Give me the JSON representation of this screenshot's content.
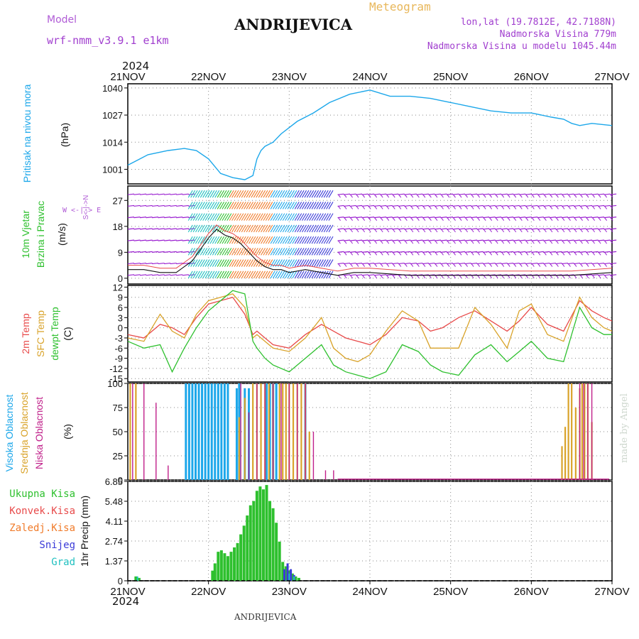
{
  "header": {
    "model_label": "Model",
    "model_version": "wrf-nmm_v3.9.1 e1km",
    "station": "ANDRIJEVICA",
    "meteogram": "Meteogram",
    "lonlat": "lon,lat (19.7812E, 42.7188N)",
    "altitude": "Nadmorska Visina 779m",
    "model_altitude": "Nadmorska Visina u modelu 1045.44m",
    "year": "2024",
    "footer": "ANDRIJEVICA",
    "made_by": "made by Angel"
  },
  "x_labels": [
    "21NOV",
    "22NOV",
    "23NOV",
    "24NOV",
    "25NOV",
    "26NOV",
    "27NOV"
  ],
  "colors": {
    "pressure": "#1ca7ea",
    "wind_purple": "#9a1fd0",
    "wind_red": "#e84a4a",
    "t2m": "#e84a4a",
    "sfc": "#d9a32a",
    "dewpt": "#2ec02e",
    "cloud_high": "#1ca7ea",
    "cloud_mid": "#d9a32a",
    "cloud_low": "#c0208a",
    "precip_total": "#2ec02e",
    "precip_conv": "#e84a4a",
    "precip_frz": "#f07b2a",
    "precip_snow": "#3a3ad8",
    "precip_hail": "#20c0c0"
  },
  "panel_labels": {
    "pressure": {
      "name": "Pritisak na nivou mora",
      "unit": "(hPa)"
    },
    "wind": {
      "name1": "10m Vjetar",
      "name2": "Brzina i Pravac",
      "unit": "(m/s)",
      "compass": "W <-|-> E",
      "compass_ns": "S<-|->N"
    },
    "temp": {
      "l1": "2m Temp",
      "l2": "SFC Temp",
      "l3": "dewpt Temp",
      "unit": "(C)"
    },
    "cloud": {
      "l1": "Visoka Oblacnost",
      "l2": "Srednja Oblacnost",
      "l3": "Niska Oblacnost",
      "unit": "(%)"
    },
    "precip": {
      "unit": "1hr Precip (mm)",
      "legend": [
        "Ukupna Kisa",
        "Konvek.Kisa",
        "Zaledj.Kisa",
        "Snijeg",
        "Grad"
      ]
    }
  },
  "chart_data": [
    {
      "type": "line",
      "title": "Pritisak na nivou mora",
      "ylabel": "(hPa)",
      "yticks": [
        1001,
        1014,
        1027,
        1040
      ],
      "ylim": [
        994,
        1042
      ],
      "x_days": [
        0,
        0.1,
        0.25,
        0.5,
        0.7,
        0.85,
        1.0,
        1.15,
        1.3,
        1.45,
        1.55,
        1.6,
        1.65,
        1.7,
        1.8,
        1.9,
        2.1,
        2.3,
        2.5,
        2.75,
        3.0,
        3.25,
        3.5,
        3.75,
        4.0,
        4.25,
        4.5,
        4.75,
        5.0,
        5.25,
        5.4,
        5.5,
        5.6,
        5.75,
        6.0
      ],
      "values": [
        1003,
        1005,
        1008,
        1010,
        1011,
        1010,
        1006,
        999,
        997,
        996,
        998,
        1006,
        1010,
        1012,
        1014,
        1018,
        1024,
        1028,
        1033,
        1037,
        1039,
        1036,
        1036,
        1035,
        1033,
        1031,
        1029,
        1028,
        1028,
        1026,
        1025,
        1023,
        1022,
        1023,
        1022
      ]
    },
    {
      "type": "line",
      "title": "10m Vjetar Brzina i Pravac",
      "ylabel": "(m/s)",
      "yticks": [
        0,
        9,
        18,
        27
      ],
      "ylim": [
        -2,
        32
      ],
      "speed_x_days": [
        0,
        0.2,
        0.4,
        0.6,
        0.7,
        0.8,
        0.9,
        1.0,
        1.1,
        1.2,
        1.3,
        1.4,
        1.5,
        1.6,
        1.7,
        1.8,
        1.9,
        2.0,
        2.2,
        2.4,
        2.6,
        2.8,
        3.0,
        3.5,
        4.0,
        4.5,
        5.0,
        5.5,
        6.0
      ],
      "speed": [
        3,
        3,
        2,
        2,
        4,
        6,
        10,
        14,
        17,
        15,
        14,
        12,
        9,
        6,
        4,
        3,
        3,
        2,
        3,
        2,
        1,
        2,
        2,
        1,
        1,
        1,
        1,
        1,
        2
      ]
    },
    {
      "type": "line",
      "title": "2m Temp / SFC Temp / dewpt Temp",
      "ylabel": "(C)",
      "yticks": [
        -15,
        -12,
        -9,
        -6,
        -3,
        0,
        3,
        6,
        9,
        12
      ],
      "ylim": [
        -16,
        12.5
      ],
      "x_days": [
        0,
        0.2,
        0.4,
        0.55,
        0.7,
        0.85,
        1.0,
        1.15,
        1.3,
        1.45,
        1.55,
        1.6,
        1.7,
        1.8,
        2.0,
        2.2,
        2.4,
        2.55,
        2.7,
        2.85,
        3.0,
        3.2,
        3.4,
        3.6,
        3.75,
        3.9,
        4.1,
        4.3,
        4.5,
        4.7,
        4.85,
        5.0,
        5.2,
        5.4,
        5.6,
        5.75,
        5.9,
        6.0
      ],
      "series": [
        {
          "name": "2m Temp",
          "values": [
            -2,
            -3,
            1,
            0,
            -2,
            3,
            7,
            8,
            9,
            4,
            -2,
            -1,
            -3,
            -5,
            -6,
            -2,
            1,
            -1,
            -3,
            -4,
            -5,
            -2,
            3,
            2,
            -1,
            0,
            3,
            5,
            2,
            -1,
            2,
            6,
            1,
            -1,
            8,
            5,
            3,
            2
          ]
        },
        {
          "name": "SFC Temp",
          "values": [
            -3,
            -4,
            4,
            -1,
            -3,
            4,
            8,
            9,
            10,
            6,
            -3,
            -2,
            -4,
            -6,
            -7,
            -3,
            3,
            -6,
            -9,
            -10,
            -8,
            -1,
            5,
            2,
            -6,
            -6,
            -6,
            6,
            1,
            -6,
            5,
            7,
            -2,
            -4,
            9,
            3,
            0,
            -1
          ]
        },
        {
          "name": "dewpt Temp",
          "values": [
            -4,
            -6,
            -5,
            -13,
            -6,
            0,
            5,
            8,
            11,
            10,
            -4,
            -6,
            -9,
            -11,
            -13,
            -9,
            -5,
            -11,
            -13,
            -14,
            -15,
            -13,
            -5,
            -7,
            -11,
            -13,
            -14,
            -8,
            -5,
            -10,
            -7,
            -4,
            -9,
            -10,
            6,
            0,
            -2,
            -2
          ]
        }
      ]
    },
    {
      "type": "bar",
      "title": "Visoka / Srednja / Niska Oblacnost",
      "ylabel": "(%)",
      "yticks": [
        0,
        25,
        50,
        75,
        100
      ],
      "ylim": [
        0,
        100
      ],
      "series": [
        {
          "name": "Visoka Oblacnost",
          "bars": [
            [
              0.72,
              100
            ],
            [
              0.76,
              100
            ],
            [
              0.8,
              100
            ],
            [
              0.84,
              100
            ],
            [
              0.88,
              100
            ],
            [
              0.92,
              100
            ],
            [
              0.96,
              100
            ],
            [
              1.0,
              100
            ],
            [
              1.04,
              100
            ],
            [
              1.08,
              100
            ],
            [
              1.12,
              100
            ],
            [
              1.16,
              100
            ],
            [
              1.2,
              100
            ],
            [
              1.24,
              100
            ],
            [
              1.35,
              95
            ],
            [
              1.38,
              100
            ],
            [
              1.45,
              95
            ],
            [
              1.5,
              95
            ],
            [
              1.72,
              100
            ],
            [
              1.76,
              100
            ],
            [
              1.8,
              100
            ],
            [
              1.84,
              100
            ],
            [
              2.2,
              100
            ]
          ]
        },
        {
          "name": "Srednja Oblacnost",
          "bars": [
            [
              0.03,
              100
            ],
            [
              0.1,
              100
            ],
            [
              1.38,
              65
            ],
            [
              1.45,
              85
            ],
            [
              1.55,
              100
            ],
            [
              1.6,
              100
            ],
            [
              1.65,
              100
            ],
            [
              1.7,
              100
            ],
            [
              1.75,
              100
            ],
            [
              1.8,
              100
            ],
            [
              1.88,
              100
            ],
            [
              1.92,
              100
            ],
            [
              1.96,
              100
            ],
            [
              2.0,
              100
            ],
            [
              2.05,
              100
            ],
            [
              2.1,
              100
            ],
            [
              2.15,
              100
            ],
            [
              2.2,
              100
            ],
            [
              2.25,
              50
            ],
            [
              5.38,
              35
            ],
            [
              5.42,
              55
            ],
            [
              5.46,
              100
            ],
            [
              5.5,
              100
            ],
            [
              5.55,
              75
            ],
            [
              5.6,
              95
            ],
            [
              5.63,
              100
            ],
            [
              5.66,
              100
            ],
            [
              5.7,
              100
            ],
            [
              5.75,
              60
            ]
          ]
        },
        {
          "name": "Niska Oblacnost",
          "bars": [
            [
              0.06,
              100
            ],
            [
              0.2,
              100
            ],
            [
              0.35,
              80
            ],
            [
              0.5,
              15
            ],
            [
              1.4,
              100
            ],
            [
              1.5,
              70
            ],
            [
              1.6,
              100
            ],
            [
              1.7,
              100
            ],
            [
              1.8,
              100
            ],
            [
              1.9,
              100
            ],
            [
              2.0,
              100
            ],
            [
              2.1,
              100
            ],
            [
              2.2,
              100
            ],
            [
              2.3,
              50
            ],
            [
              2.45,
              10
            ],
            [
              2.55,
              10
            ],
            [
              5.6,
              100
            ],
            [
              5.65,
              100
            ],
            [
              5.7,
              100
            ],
            [
              5.75,
              100
            ]
          ]
        }
      ]
    },
    {
      "type": "bar",
      "title": "1hr Precip",
      "ylabel": "1hr Precip (mm)",
      "yticks": [
        0,
        1.37,
        2.74,
        4.11,
        5.48,
        6.85
      ],
      "ylim": [
        0,
        6.85
      ],
      "series": [
        {
          "name": "Ukupna Kisa",
          "bars": [
            [
              0.1,
              0.3
            ],
            [
              0.14,
              0.2
            ],
            [
              1.05,
              0.7
            ],
            [
              1.08,
              1.2
            ],
            [
              1.12,
              2.0
            ],
            [
              1.16,
              2.1
            ],
            [
              1.2,
              1.9
            ],
            [
              1.24,
              1.7
            ],
            [
              1.28,
              2.0
            ],
            [
              1.32,
              2.3
            ],
            [
              1.36,
              2.6
            ],
            [
              1.4,
              3.2
            ],
            [
              1.44,
              3.8
            ],
            [
              1.48,
              4.5
            ],
            [
              1.52,
              5.2
            ],
            [
              1.56,
              5.5
            ],
            [
              1.6,
              6.2
            ],
            [
              1.64,
              6.5
            ],
            [
              1.68,
              6.3
            ],
            [
              1.72,
              6.6
            ],
            [
              1.76,
              5.5
            ],
            [
              1.8,
              5.0
            ],
            [
              1.84,
              4.0
            ],
            [
              1.88,
              2.7
            ],
            [
              1.92,
              1.3
            ],
            [
              1.96,
              1.0
            ],
            [
              2.0,
              0.7
            ],
            [
              2.04,
              0.5
            ],
            [
              2.08,
              0.3
            ],
            [
              2.12,
              0.2
            ]
          ]
        },
        {
          "name": "Snijeg",
          "bars": [
            [
              1.94,
              0.8
            ],
            [
              1.98,
              1.2
            ],
            [
              2.02,
              0.8
            ],
            [
              2.06,
              0.4
            ]
          ]
        },
        {
          "name": "Grad",
          "bars": [
            [
              0.12,
              0.3
            ],
            [
              2.0,
              0.5
            ],
            [
              2.06,
              0.3
            ]
          ]
        }
      ]
    }
  ]
}
